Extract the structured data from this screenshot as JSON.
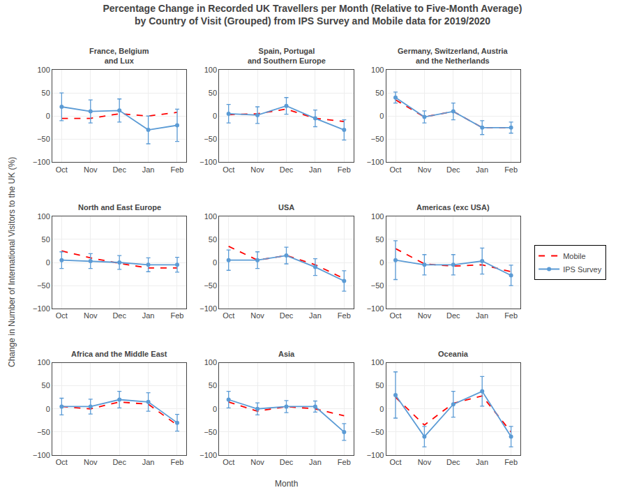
{
  "title": "Percentage Change in Recorded UK Travellers per Month (Relative to Five-Month Average)\nby Country of Visit (Grouped) from IPS Survey and Mobile data for 2019/2020",
  "xlabel": "Month",
  "ylabel": "Change in Number of International Visitors to the UK (%)",
  "legend": "right",
  "chart_data": [
    {
      "type": "line",
      "title": "France, Belgium\nand Lux",
      "categories": [
        "Oct",
        "Nov",
        "Dec",
        "Jan",
        "Feb"
      ],
      "series": [
        {
          "name": "Mobile",
          "color": "#ff0000",
          "line_style": "dash",
          "values": [
            -5,
            -5,
            5,
            0,
            8
          ]
        },
        {
          "name": "IPS Survey",
          "color": "#5b9bd5",
          "line_style": "solid",
          "marker": "circle",
          "values": [
            20,
            10,
            12,
            -30,
            -20
          ],
          "errors": [
            30,
            25,
            25,
            30,
            35
          ]
        }
      ],
      "ylim": [
        -100,
        100
      ],
      "yticks": [
        {
          "value": -100,
          "label": "−100"
        },
        {
          "value": -50,
          "label": "−50"
        },
        0,
        50,
        100
      ],
      "grid": true
    },
    {
      "type": "line",
      "title": "Spain, Portugal\nand Southern Europe",
      "categories": [
        "Oct",
        "Nov",
        "Dec",
        "Jan",
        "Feb"
      ],
      "series": [
        {
          "name": "Mobile",
          "color": "#ff0000",
          "line_style": "dash",
          "values": [
            3,
            5,
            15,
            -5,
            -12
          ]
        },
        {
          "name": "IPS Survey",
          "color": "#5b9bd5",
          "line_style": "solid",
          "marker": "circle",
          "values": [
            5,
            2,
            22,
            -5,
            -30
          ],
          "errors": [
            20,
            18,
            18,
            18,
            22
          ]
        }
      ],
      "ylim": [
        -100,
        100
      ],
      "yticks": [
        {
          "value": -100,
          "label": "−100"
        },
        {
          "value": -50,
          "label": "−50"
        },
        0,
        50,
        100
      ],
      "grid": true
    },
    {
      "type": "line",
      "title": "Germany, Switzerland, Austria\nand the Netherlands",
      "categories": [
        "Oct",
        "Nov",
        "Dec",
        "Jan",
        "Feb"
      ],
      "series": [
        {
          "name": "Mobile",
          "color": "#ff0000",
          "line_style": "dash",
          "values": [
            35,
            -2,
            10,
            -25,
            -25
          ]
        },
        {
          "name": "IPS Survey",
          "color": "#5b9bd5",
          "line_style": "solid",
          "marker": "circle",
          "values": [
            40,
            -2,
            10,
            -25,
            -25
          ],
          "errors": [
            12,
            13,
            18,
            15,
            12
          ]
        }
      ],
      "ylim": [
        -100,
        100
      ],
      "yticks": [
        {
          "value": -100,
          "label": "−100"
        },
        {
          "value": -50,
          "label": "−50"
        },
        0,
        50,
        100
      ],
      "grid": true
    },
    {
      "type": "line",
      "title": "North and East Europe",
      "categories": [
        "Oct",
        "Nov",
        "Dec",
        "Jan",
        "Feb"
      ],
      "series": [
        {
          "name": "Mobile",
          "color": "#ff0000",
          "line_style": "dash",
          "values": [
            25,
            10,
            -2,
            -12,
            -12
          ]
        },
        {
          "name": "IPS Survey",
          "color": "#5b9bd5",
          "line_style": "solid",
          "marker": "circle",
          "values": [
            5,
            3,
            0,
            -5,
            -5
          ],
          "errors": [
            18,
            16,
            15,
            15,
            16
          ]
        }
      ],
      "ylim": [
        -100,
        100
      ],
      "yticks": [
        {
          "value": -100,
          "label": "−100"
        },
        {
          "value": -50,
          "label": "−50"
        },
        0,
        50,
        100
      ],
      "grid": true
    },
    {
      "type": "line",
      "title": "USA",
      "categories": [
        "Oct",
        "Nov",
        "Dec",
        "Jan",
        "Feb"
      ],
      "series": [
        {
          "name": "Mobile",
          "color": "#ff0000",
          "line_style": "dash",
          "values": [
            35,
            5,
            15,
            -5,
            -35
          ]
        },
        {
          "name": "IPS Survey",
          "color": "#5b9bd5",
          "line_style": "solid",
          "marker": "circle",
          "values": [
            5,
            5,
            15,
            -10,
            -40
          ],
          "errors": [
            22,
            18,
            18,
            18,
            22
          ]
        }
      ],
      "ylim": [
        -100,
        100
      ],
      "yticks": [
        {
          "value": -100,
          "label": "−100"
        },
        {
          "value": -50,
          "label": "−50"
        },
        0,
        50,
        100
      ],
      "grid": true
    },
    {
      "type": "line",
      "title": "Americas (exc USA)",
      "categories": [
        "Oct",
        "Nov",
        "Dec",
        "Jan",
        "Feb"
      ],
      "series": [
        {
          "name": "Mobile",
          "color": "#ff0000",
          "line_style": "dash",
          "values": [
            30,
            -3,
            -8,
            -5,
            -20
          ]
        },
        {
          "name": "IPS Survey",
          "color": "#5b9bd5",
          "line_style": "solid",
          "marker": "circle",
          "values": [
            5,
            -5,
            -5,
            3,
            -28
          ],
          "errors": [
            42,
            22,
            22,
            28,
            22
          ]
        }
      ],
      "ylim": [
        -100,
        100
      ],
      "yticks": [
        {
          "value": -100,
          "label": "−100"
        },
        {
          "value": -50,
          "label": "−50"
        },
        0,
        50,
        100
      ],
      "grid": true
    },
    {
      "type": "line",
      "title": "Africa and the Middle East",
      "categories": [
        "Oct",
        "Nov",
        "Dec",
        "Jan",
        "Feb"
      ],
      "series": [
        {
          "name": "Mobile",
          "color": "#ff0000",
          "line_style": "dash",
          "values": [
            5,
            0,
            15,
            10,
            -35
          ]
        },
        {
          "name": "IPS Survey",
          "color": "#5b9bd5",
          "line_style": "solid",
          "marker": "circle",
          "values": [
            5,
            5,
            20,
            15,
            -30
          ],
          "errors": [
            18,
            16,
            18,
            20,
            18
          ]
        }
      ],
      "ylim": [
        -100,
        100
      ],
      "yticks": [
        {
          "value": -100,
          "label": "−100"
        },
        {
          "value": -50,
          "label": "−50"
        },
        0,
        50,
        100
      ],
      "grid": true
    },
    {
      "type": "line",
      "title": "Asia",
      "categories": [
        "Oct",
        "Nov",
        "Dec",
        "Jan",
        "Feb"
      ],
      "series": [
        {
          "name": "Mobile",
          "color": "#ff0000",
          "line_style": "dash",
          "values": [
            15,
            -5,
            5,
            0,
            -15
          ]
        },
        {
          "name": "IPS Survey",
          "color": "#5b9bd5",
          "line_style": "solid",
          "marker": "circle",
          "values": [
            20,
            0,
            5,
            5,
            -50
          ],
          "errors": [
            18,
            13,
            13,
            12,
            18
          ]
        }
      ],
      "ylim": [
        -100,
        100
      ],
      "yticks": [
        {
          "value": -100,
          "label": "−100"
        },
        {
          "value": -50,
          "label": "−50"
        },
        0,
        50,
        100
      ],
      "grid": true
    },
    {
      "type": "line",
      "title": "Oceania",
      "categories": [
        "Oct",
        "Nov",
        "Dec",
        "Jan",
        "Feb"
      ],
      "series": [
        {
          "name": "Mobile",
          "color": "#ff0000",
          "line_style": "dash",
          "values": [
            25,
            -35,
            12,
            28,
            -50
          ]
        },
        {
          "name": "IPS Survey",
          "color": "#5b9bd5",
          "line_style": "solid",
          "marker": "circle",
          "values": [
            30,
            -60,
            10,
            38,
            -60
          ],
          "errors": [
            50,
            22,
            28,
            32,
            22
          ]
        }
      ],
      "ylim": [
        -100,
        100
      ],
      "yticks": [
        {
          "value": -100,
          "label": "−100"
        },
        {
          "value": -50,
          "label": "−50"
        },
        0,
        50,
        100
      ],
      "grid": true
    }
  ]
}
